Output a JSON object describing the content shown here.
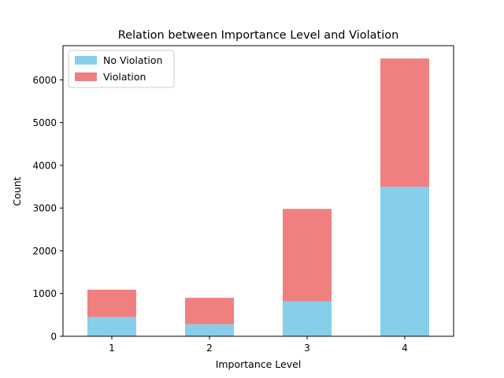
{
  "chart_data": {
    "type": "bar",
    "stacked": true,
    "title": "Relation between Importance Level and Violation",
    "xlabel": "Importance Level",
    "ylabel": "Count",
    "categories": [
      "1",
      "2",
      "3",
      "4"
    ],
    "series": [
      {
        "name": "No Violation",
        "values": [
          450,
          280,
          820,
          3500
        ],
        "color": "#87CEEB"
      },
      {
        "name": "Violation",
        "values": [
          640,
          620,
          2160,
          3000
        ],
        "color": "#F08080"
      }
    ],
    "ylim": [
      0,
      6800
    ],
    "yticks": [
      0,
      1000,
      2000,
      3000,
      4000,
      5000,
      6000
    ],
    "legend_position": "top-left",
    "grid": false
  }
}
